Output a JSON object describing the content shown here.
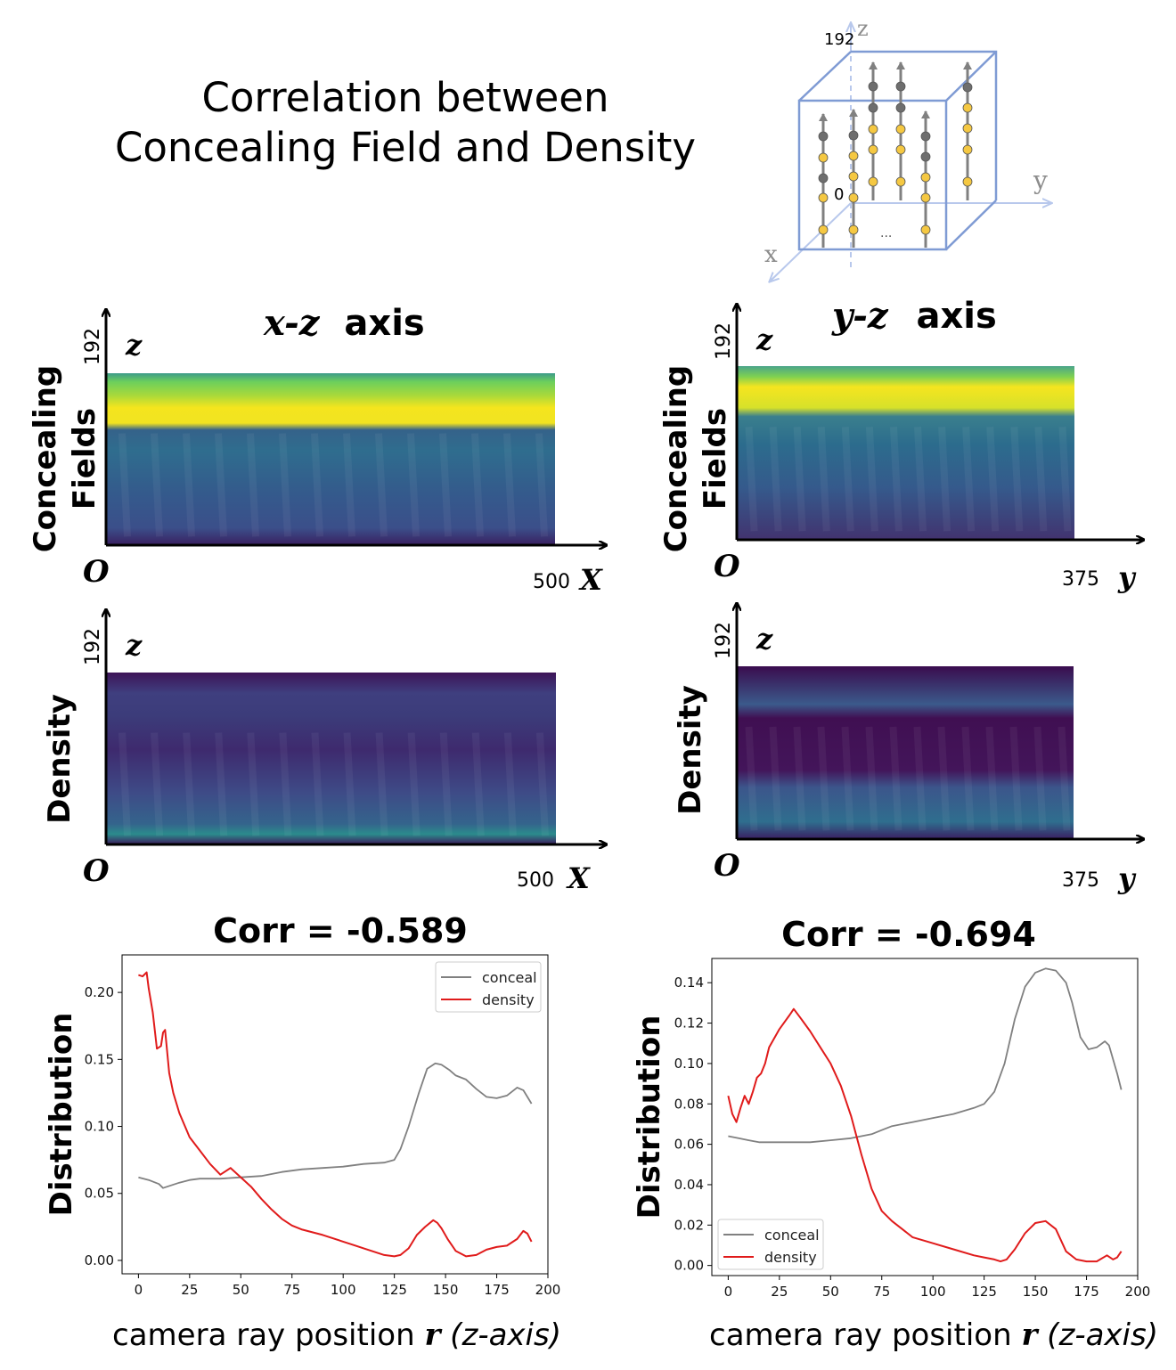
{
  "title_lines": [
    "Correlation between",
    "Concealing Field and Density"
  ],
  "cube": {
    "z_top_label": "192",
    "z_axis": "z",
    "y_axis": "y",
    "x_axis": "x",
    "origin": "0",
    "dots": "..."
  },
  "panels": {
    "xz_title_italic": "x-z",
    "xz_title_rest": "axis",
    "yz_title_italic": "y-z",
    "yz_title_rest": "axis",
    "row1_label_line1": "Concealing",
    "row1_label_line2": "Fields",
    "row2_label": "Density",
    "z_tick": "192",
    "z_letter": "z",
    "origin_letter": "O",
    "xz_max": "500",
    "x_letter": "X",
    "yz_max": "375",
    "y_letter": "y"
  },
  "colors": {
    "conceal": "#808080",
    "density": "#e01b1b",
    "cube": "#7f9bd4",
    "dot_yellow": "#f5c842",
    "dot_gray": "#6e6e6e"
  },
  "xlabel_main": "camera ray position ",
  "xlabel_r": "r",
  "xlabel_paren": " (",
  "xlabel_z": "z",
  "xlabel_tail": "-axis)",
  "chart_data": [
    {
      "type": "line",
      "title": "Corr = -0.589",
      "ylabel": "Distribution",
      "xlim": [
        -8,
        200
      ],
      "ylim": [
        -0.01,
        0.228
      ],
      "xticks": [
        0,
        25,
        50,
        75,
        100,
        125,
        150,
        175,
        200
      ],
      "yticks": [
        0.0,
        0.05,
        0.1,
        0.15,
        0.2
      ],
      "ytick_labels": [
        "0.00",
        "0.05",
        "0.10",
        "0.15",
        "0.20"
      ],
      "legend_position": "top-right",
      "series": [
        {
          "name": "conceal",
          "color": "#808080",
          "x": [
            0,
            5,
            10,
            12,
            14,
            20,
            25,
            30,
            40,
            50,
            60,
            70,
            80,
            90,
            100,
            110,
            120,
            125,
            128,
            132,
            137,
            141,
            145,
            148,
            152,
            155,
            160,
            165,
            170,
            175,
            180,
            185,
            188,
            192
          ],
          "y": [
            0.062,
            0.06,
            0.057,
            0.054,
            0.055,
            0.058,
            0.06,
            0.061,
            0.061,
            0.062,
            0.063,
            0.066,
            0.068,
            0.069,
            0.07,
            0.072,
            0.073,
            0.075,
            0.083,
            0.1,
            0.125,
            0.143,
            0.147,
            0.146,
            0.142,
            0.138,
            0.135,
            0.128,
            0.122,
            0.121,
            0.123,
            0.129,
            0.127,
            0.117
          ]
        },
        {
          "name": "density",
          "color": "#e01b1b",
          "x": [
            0,
            2,
            4,
            5,
            7,
            9,
            11,
            12,
            13,
            15,
            17,
            20,
            25,
            30,
            35,
            40,
            45,
            50,
            55,
            60,
            65,
            70,
            75,
            80,
            90,
            100,
            110,
            120,
            125,
            128,
            132,
            136,
            140,
            144,
            146,
            148,
            151,
            155,
            160,
            165,
            170,
            175,
            180,
            185,
            188,
            190,
            192
          ],
          "y": [
            0.213,
            0.212,
            0.215,
            0.203,
            0.185,
            0.158,
            0.16,
            0.17,
            0.172,
            0.14,
            0.125,
            0.11,
            0.092,
            0.082,
            0.072,
            0.064,
            0.069,
            0.062,
            0.055,
            0.046,
            0.038,
            0.031,
            0.026,
            0.023,
            0.019,
            0.014,
            0.009,
            0.004,
            0.003,
            0.004,
            0.009,
            0.019,
            0.025,
            0.03,
            0.028,
            0.024,
            0.016,
            0.007,
            0.003,
            0.004,
            0.008,
            0.01,
            0.011,
            0.016,
            0.022,
            0.02,
            0.014
          ]
        }
      ]
    },
    {
      "type": "line",
      "title": "Corr = -0.694",
      "ylabel": "Distribution",
      "xlim": [
        -8,
        200
      ],
      "ylim": [
        -0.005,
        0.152
      ],
      "xticks": [
        0,
        25,
        50,
        75,
        100,
        125,
        150,
        175,
        200
      ],
      "yticks": [
        0.0,
        0.02,
        0.04,
        0.06,
        0.08,
        0.1,
        0.12,
        0.14
      ],
      "ytick_labels": [
        "0.00",
        "0.02",
        "0.04",
        "0.06",
        "0.08",
        "0.10",
        "0.12",
        "0.14"
      ],
      "legend_position": "bottom-left",
      "series": [
        {
          "name": "conceal",
          "color": "#808080",
          "x": [
            0,
            5,
            10,
            15,
            20,
            30,
            40,
            50,
            60,
            70,
            75,
            80,
            90,
            100,
            110,
            120,
            125,
            130,
            135,
            140,
            145,
            150,
            155,
            160,
            165,
            168,
            172,
            176,
            180,
            184,
            186,
            190,
            192
          ],
          "y": [
            0.064,
            0.063,
            0.062,
            0.061,
            0.061,
            0.061,
            0.061,
            0.062,
            0.063,
            0.065,
            0.067,
            0.069,
            0.071,
            0.073,
            0.075,
            0.078,
            0.08,
            0.086,
            0.1,
            0.122,
            0.138,
            0.145,
            0.147,
            0.146,
            0.14,
            0.13,
            0.113,
            0.107,
            0.108,
            0.111,
            0.109,
            0.095,
            0.087
          ]
        },
        {
          "name": "density",
          "color": "#e01b1b",
          "x": [
            0,
            2,
            4,
            6,
            8,
            10,
            12,
            14,
            16,
            18,
            20,
            25,
            30,
            32,
            35,
            40,
            45,
            50,
            55,
            60,
            65,
            70,
            75,
            80,
            85,
            90,
            100,
            110,
            120,
            125,
            130,
            133,
            136,
            140,
            145,
            150,
            155,
            160,
            165,
            170,
            175,
            180,
            185,
            188,
            190,
            192
          ],
          "y": [
            0.084,
            0.075,
            0.071,
            0.078,
            0.084,
            0.08,
            0.086,
            0.093,
            0.095,
            0.1,
            0.108,
            0.117,
            0.124,
            0.127,
            0.123,
            0.116,
            0.108,
            0.1,
            0.089,
            0.074,
            0.055,
            0.038,
            0.027,
            0.022,
            0.018,
            0.014,
            0.011,
            0.008,
            0.005,
            0.004,
            0.003,
            0.002,
            0.003,
            0.008,
            0.016,
            0.021,
            0.022,
            0.018,
            0.007,
            0.003,
            0.002,
            0.002,
            0.005,
            0.003,
            0.004,
            0.007
          ]
        }
      ]
    }
  ]
}
